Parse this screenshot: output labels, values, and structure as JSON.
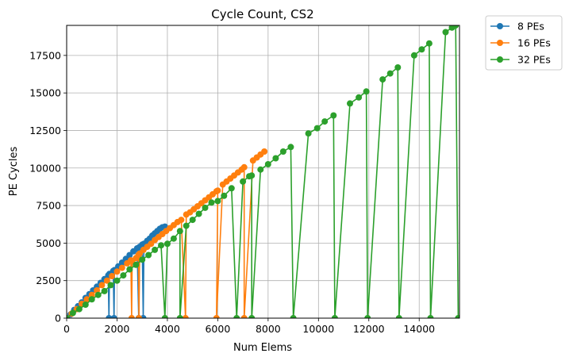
{
  "chart_data": {
    "type": "line",
    "title": "Cycle Count, CS2",
    "xlabel": "Num Elems",
    "ylabel": "PE Cycles",
    "xlim": [
      0,
      15600
    ],
    "ylim": [
      0,
      19500
    ],
    "xticks": [
      0,
      2000,
      4000,
      6000,
      8000,
      10000,
      12000,
      14000
    ],
    "yticks": [
      0,
      2500,
      5000,
      7500,
      10000,
      12500,
      15000,
      17500
    ],
    "grid": true,
    "legend_position": "outside-top-right",
    "series": [
      {
        "name": "8 PEs",
        "color": "#1f77b4",
        "points": [
          [
            0,
            0
          ],
          [
            150,
            250
          ],
          [
            300,
            550
          ],
          [
            450,
            800
          ],
          [
            600,
            1050
          ],
          [
            750,
            1350
          ],
          [
            900,
            1600
          ],
          [
            1050,
            1850
          ],
          [
            1200,
            2100
          ],
          [
            1350,
            2350
          ],
          [
            1500,
            2600
          ],
          [
            1650,
            2850
          ],
          [
            1680,
            0
          ],
          [
            1700,
            2950
          ],
          [
            1850,
            3150
          ],
          [
            1880,
            0
          ],
          [
            1900,
            3200
          ],
          [
            2050,
            3450
          ],
          [
            2200,
            3700
          ],
          [
            2350,
            3950
          ],
          [
            2500,
            4200
          ],
          [
            2650,
            4450
          ],
          [
            2800,
            4650
          ],
          [
            2860,
            0
          ],
          [
            2900,
            4750
          ],
          [
            3000,
            4900
          ],
          [
            3040,
            0
          ],
          [
            3070,
            4950
          ],
          [
            3200,
            5150
          ],
          [
            3300,
            5300
          ],
          [
            3400,
            5500
          ],
          [
            3500,
            5650
          ],
          [
            3600,
            5800
          ],
          [
            3700,
            5950
          ],
          [
            3800,
            6050
          ],
          [
            3900,
            6100
          ]
        ]
      },
      {
        "name": "16 PEs",
        "color": "#ff7f0e",
        "points": [
          [
            0,
            0
          ],
          [
            200,
            300
          ],
          [
            400,
            600
          ],
          [
            600,
            950
          ],
          [
            800,
            1250
          ],
          [
            1000,
            1550
          ],
          [
            1200,
            1850
          ],
          [
            1400,
            2200
          ],
          [
            1600,
            2500
          ],
          [
            1800,
            2800
          ],
          [
            2000,
            3100
          ],
          [
            2200,
            3350
          ],
          [
            2400,
            3650
          ],
          [
            2550,
            3850
          ],
          [
            2580,
            0
          ],
          [
            2600,
            3800
          ],
          [
            2750,
            4000
          ],
          [
            2850,
            4200
          ],
          [
            2870,
            0
          ],
          [
            2900,
            4300
          ],
          [
            3050,
            4550
          ],
          [
            3200,
            4750
          ],
          [
            3350,
            4950
          ],
          [
            3500,
            5200
          ],
          [
            3650,
            5400
          ],
          [
            3800,
            5600
          ],
          [
            3950,
            5800
          ],
          [
            4100,
            6000
          ],
          [
            4250,
            6200
          ],
          [
            4400,
            6400
          ],
          [
            4550,
            6550
          ],
          [
            4720,
            0
          ],
          [
            4750,
            6900
          ],
          [
            4900,
            7050
          ],
          [
            5050,
            7250
          ],
          [
            5200,
            7450
          ],
          [
            5350,
            7650
          ],
          [
            5500,
            7850
          ],
          [
            5650,
            8050
          ],
          [
            5800,
            8250
          ],
          [
            5950,
            8450
          ],
          [
            6000,
            8500
          ],
          [
            5950,
            0
          ],
          [
            6200,
            8900
          ],
          [
            6350,
            9100
          ],
          [
            6500,
            9300
          ],
          [
            6650,
            9500
          ],
          [
            6800,
            9700
          ],
          [
            6950,
            9900
          ],
          [
            7050,
            10050
          ],
          [
            7050,
            0
          ],
          [
            7400,
            10500
          ],
          [
            7550,
            10700
          ],
          [
            7700,
            10900
          ],
          [
            7850,
            11100
          ]
        ]
      },
      {
        "name": "32 PEs",
        "color": "#2ca02c",
        "points": [
          [
            0,
            0
          ],
          [
            250,
            350
          ],
          [
            500,
            600
          ],
          [
            750,
            900
          ],
          [
            1000,
            1250
          ],
          [
            1250,
            1550
          ],
          [
            1500,
            1800
          ],
          [
            1750,
            2200
          ],
          [
            2000,
            2500
          ],
          [
            2250,
            2850
          ],
          [
            2500,
            3250
          ],
          [
            2750,
            3550
          ],
          [
            3000,
            3900
          ],
          [
            3250,
            4200
          ],
          [
            3500,
            4550
          ],
          [
            3750,
            4850
          ],
          [
            3900,
            0
          ],
          [
            4000,
            4950
          ],
          [
            4250,
            5300
          ],
          [
            4500,
            5800
          ],
          [
            4500,
            0
          ],
          [
            4750,
            6150
          ],
          [
            5000,
            6550
          ],
          [
            5250,
            6950
          ],
          [
            5500,
            7350
          ],
          [
            5750,
            7700
          ],
          [
            6000,
            7800
          ],
          [
            6250,
            8150
          ],
          [
            6550,
            8650
          ],
          [
            6750,
            0
          ],
          [
            7000,
            9100
          ],
          [
            7250,
            9450
          ],
          [
            7350,
            9500
          ],
          [
            7350,
            0
          ],
          [
            7700,
            9900
          ],
          [
            8000,
            10250
          ],
          [
            8300,
            10650
          ],
          [
            8600,
            11100
          ],
          [
            8900,
            11400
          ],
          [
            9000,
            0
          ],
          [
            9600,
            12300
          ],
          [
            9950,
            12650
          ],
          [
            10250,
            13100
          ],
          [
            10600,
            13500
          ],
          [
            10650,
            0
          ],
          [
            11250,
            14300
          ],
          [
            11600,
            14700
          ],
          [
            11900,
            15100
          ],
          [
            11950,
            0
          ],
          [
            12550,
            15900
          ],
          [
            12850,
            16300
          ],
          [
            13150,
            16700
          ],
          [
            13200,
            0
          ],
          [
            13800,
            17500
          ],
          [
            14100,
            17900
          ],
          [
            14400,
            18300
          ],
          [
            14450,
            0
          ],
          [
            15050,
            19050
          ],
          [
            15300,
            19350
          ],
          [
            15450,
            19500
          ],
          [
            15550,
            0
          ]
        ]
      }
    ]
  }
}
